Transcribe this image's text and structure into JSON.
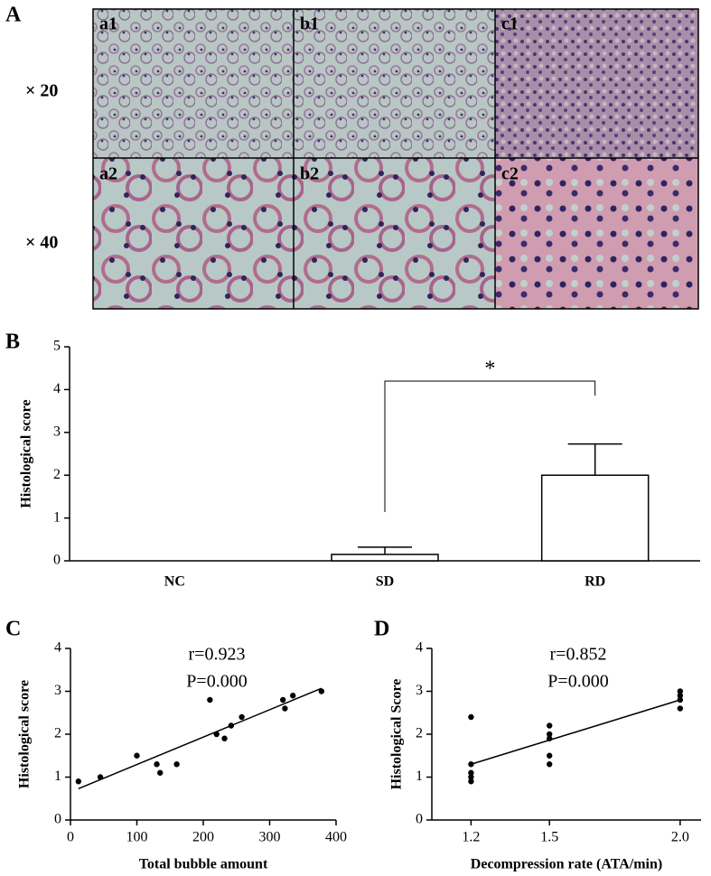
{
  "panel_a": {
    "label": "A",
    "row_labels": [
      "× 20",
      "× 40"
    ],
    "image_labels": [
      "a1",
      "b1",
      "c1",
      "a2",
      "b2",
      "c2"
    ]
  },
  "chart_data": [
    {
      "type": "bar",
      "label": "B",
      "ylabel": "Histological score",
      "categories": [
        "NC",
        "SD",
        "RD"
      ],
      "values": [
        0,
        0.15,
        2.0
      ],
      "errors": [
        0,
        0.17,
        0.73
      ],
      "annotation": "*",
      "ylim": [
        0,
        5
      ],
      "yticks": [
        0,
        1,
        2,
        3,
        4,
        5
      ],
      "color": "#ffffff"
    },
    {
      "type": "scatter",
      "label": "C",
      "xlabel": "Total bubble amount",
      "ylabel": "Histological score",
      "annotations": [
        "r=0.923",
        "P=0.000"
      ],
      "x": [
        12,
        45,
        100,
        130,
        135,
        160,
        210,
        220,
        232,
        242,
        258,
        320,
        323,
        335,
        378
      ],
      "y": [
        0.9,
        1.0,
        1.5,
        1.3,
        1.1,
        1.3,
        2.8,
        2.0,
        1.9,
        2.2,
        2.4,
        2.8,
        2.6,
        2.9,
        3.0
      ],
      "trend": {
        "x": [
          12,
          378
        ],
        "y": [
          0.73,
          3.07
        ]
      },
      "xlim": [
        0,
        400
      ],
      "xticks": [
        0,
        100,
        200,
        300,
        400
      ],
      "ylim": [
        0,
        4
      ],
      "yticks": [
        0,
        1,
        2,
        3,
        4
      ],
      "color": "#000000"
    },
    {
      "type": "scatter",
      "label": "D",
      "xlabel": "Decompression rate (ATA/min)",
      "ylabel": "Histological Score",
      "annotations": [
        "r=0.852",
        "P=0.000"
      ],
      "x": [
        1.2,
        1.2,
        1.2,
        1.2,
        1.2,
        1.5,
        1.5,
        1.5,
        1.5,
        1.5,
        2.0,
        2.0,
        2.0,
        2.0
      ],
      "y": [
        2.4,
        1.3,
        1.1,
        1.0,
        0.9,
        2.2,
        2.0,
        1.9,
        1.5,
        1.3,
        3.0,
        2.9,
        2.8,
        2.6
      ],
      "trend": {
        "x": [
          1.2,
          2.0
        ],
        "y": [
          1.3,
          2.8
        ]
      },
      "xlim": [
        1.05,
        2.08
      ],
      "xticks": [
        1.2,
        1.5,
        {
          "value": 2.0,
          "label": "2.0"
        }
      ],
      "ylim": [
        0,
        4
      ],
      "yticks": [
        0,
        1,
        2,
        3,
        4
      ],
      "color": "#000000"
    }
  ]
}
